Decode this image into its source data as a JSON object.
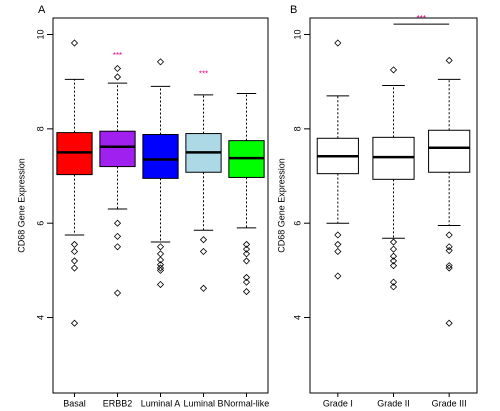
{
  "chart_data": [
    {
      "type": "box",
      "panel_label": "A",
      "y_label": "CD68 Gene Expression",
      "categories": [
        "Basal",
        "ERBB2",
        "Luminal A",
        "Luminal B",
        "Normal-like"
      ],
      "colors": [
        "#ff0000",
        "#a020f0",
        "#0000ff",
        "#add8e6",
        "#00ff00"
      ],
      "boxes": [
        {
          "whisker_low": 5.75,
          "q1": 7.03,
          "median": 7.5,
          "q3": 7.92,
          "whisker_high": 9.05,
          "outliers": [
            9.82,
            5.55,
            5.4,
            5.2,
            5.05,
            3.88
          ]
        },
        {
          "whisker_low": 6.3,
          "q1": 7.2,
          "median": 7.62,
          "q3": 7.95,
          "whisker_high": 8.97,
          "outliers": [
            9.28,
            9.1,
            6.0,
            5.72,
            5.5,
            4.52
          ]
        },
        {
          "whisker_low": 5.6,
          "q1": 6.95,
          "median": 7.35,
          "q3": 7.88,
          "whisker_high": 8.9,
          "outliers": [
            9.42,
            5.5,
            5.35,
            5.22,
            5.12,
            5.05,
            5.0,
            4.7
          ]
        },
        {
          "whisker_low": 5.85,
          "q1": 7.08,
          "median": 7.5,
          "q3": 7.9,
          "whisker_high": 8.72,
          "outliers": [
            5.65,
            5.4,
            4.62
          ]
        },
        {
          "whisker_low": 5.9,
          "q1": 6.97,
          "median": 7.38,
          "q3": 7.75,
          "whisker_high": 8.75,
          "outliers": [
            5.55,
            5.45,
            5.35,
            5.2,
            4.85,
            4.75,
            4.55
          ]
        }
      ],
      "annotations": [
        {
          "text": "***",
          "category": "ERBB2",
          "y": 9.55
        },
        {
          "text": "***",
          "category": "Luminal B",
          "y": 9.15
        }
      ],
      "ylim": [
        2.4,
        10.35
      ],
      "yticks": [
        4,
        6,
        8,
        10
      ]
    },
    {
      "type": "box",
      "panel_label": "B",
      "y_label": "CD68 Gene Expression",
      "categories": [
        "Grade I",
        "Grade II",
        "Grade III"
      ],
      "colors": [
        "#ffffff",
        "#ffffff",
        "#ffffff"
      ],
      "boxes": [
        {
          "whisker_low": 6.0,
          "q1": 7.05,
          "median": 7.42,
          "q3": 7.8,
          "whisker_high": 8.7,
          "outliers": [
            9.82,
            5.75,
            5.55,
            5.4,
            4.88
          ]
        },
        {
          "whisker_low": 5.68,
          "q1": 6.93,
          "median": 7.4,
          "q3": 7.82,
          "whisker_high": 8.92,
          "outliers": [
            9.25,
            5.6,
            5.45,
            5.3,
            5.2,
            5.1,
            4.75,
            4.65
          ]
        },
        {
          "whisker_low": 5.95,
          "q1": 7.08,
          "median": 7.6,
          "q3": 7.97,
          "whisker_high": 9.05,
          "outliers": [
            9.45,
            5.75,
            5.5,
            5.42,
            5.1,
            5.05,
            3.88
          ]
        }
      ],
      "annotations": [
        {
          "text": "***",
          "from": "Grade II",
          "to": "Grade III",
          "y": 10.22
        }
      ],
      "ylim": [
        2.4,
        10.35
      ],
      "yticks": [
        4,
        6,
        8,
        10
      ]
    }
  ]
}
